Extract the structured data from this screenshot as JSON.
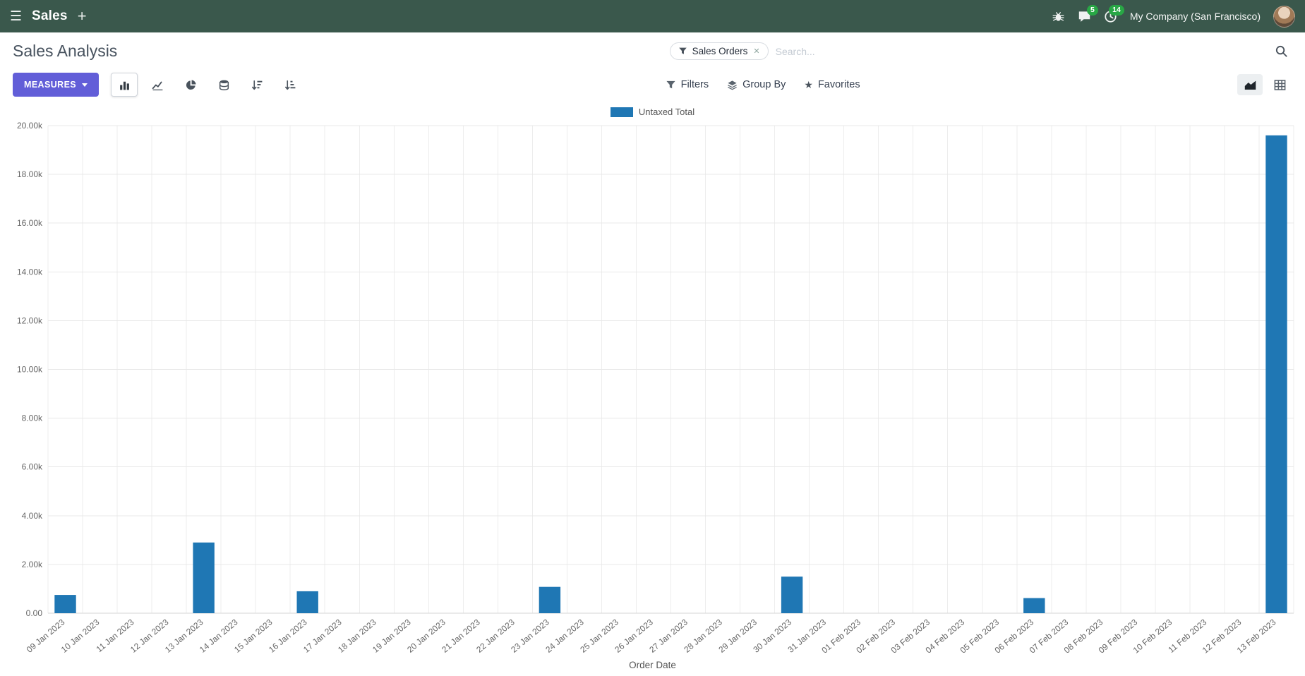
{
  "navbar": {
    "app_name": "Sales",
    "company": "My Company (San Francisco)",
    "message_badge": "5",
    "activity_badge": "14"
  },
  "control_panel": {
    "title": "Sales Analysis",
    "measures_label": "MEASURES",
    "filters_label": "Filters",
    "group_by_label": "Group By",
    "favorites_label": "Favorites",
    "search": {
      "facet": "Sales Orders",
      "placeholder": "Search..."
    }
  },
  "icons": {
    "menu": "☰",
    "plus": "+",
    "facet_remove": "✕",
    "star": "★"
  },
  "colors": {
    "navbar_bg": "#3a584c",
    "accent": "#625ed8",
    "badge": "#28a745"
  },
  "chart_data": {
    "type": "bar",
    "title": "",
    "series_name": "Untaxed Total",
    "xlabel": "Order Date",
    "ylabel": "",
    "legend_position": "top",
    "grid": true,
    "ylim": [
      0,
      20000
    ],
    "y_tick_labels": [
      "0.00",
      "2.00k",
      "4.00k",
      "6.00k",
      "8.00k",
      "10.00k",
      "12.00k",
      "14.00k",
      "16.00k",
      "18.00k",
      "20.00k"
    ],
    "bar_color": "#1f77b4",
    "categories": [
      "09 Jan 2023",
      "10 Jan 2023",
      "11 Jan 2023",
      "12 Jan 2023",
      "13 Jan 2023",
      "14 Jan 2023",
      "15 Jan 2023",
      "16 Jan 2023",
      "17 Jan 2023",
      "18 Jan 2023",
      "19 Jan 2023",
      "20 Jan 2023",
      "21 Jan 2023",
      "22 Jan 2023",
      "23 Jan 2023",
      "24 Jan 2023",
      "25 Jan 2023",
      "26 Jan 2023",
      "27 Jan 2023",
      "28 Jan 2023",
      "29 Jan 2023",
      "30 Jan 2023",
      "31 Jan 2023",
      "01 Feb 2023",
      "02 Feb 2023",
      "03 Feb 2023",
      "04 Feb 2023",
      "05 Feb 2023",
      "06 Feb 2023",
      "07 Feb 2023",
      "08 Feb 2023",
      "09 Feb 2023",
      "10 Feb 2023",
      "11 Feb 2023",
      "12 Feb 2023",
      "13 Feb 2023"
    ],
    "values": [
      750,
      0,
      0,
      0,
      2900,
      0,
      0,
      900,
      0,
      0,
      0,
      0,
      0,
      0,
      1080,
      0,
      0,
      0,
      0,
      0,
      0,
      1500,
      0,
      0,
      0,
      0,
      0,
      0,
      620,
      0,
      0,
      0,
      0,
      0,
      0,
      19600
    ]
  }
}
